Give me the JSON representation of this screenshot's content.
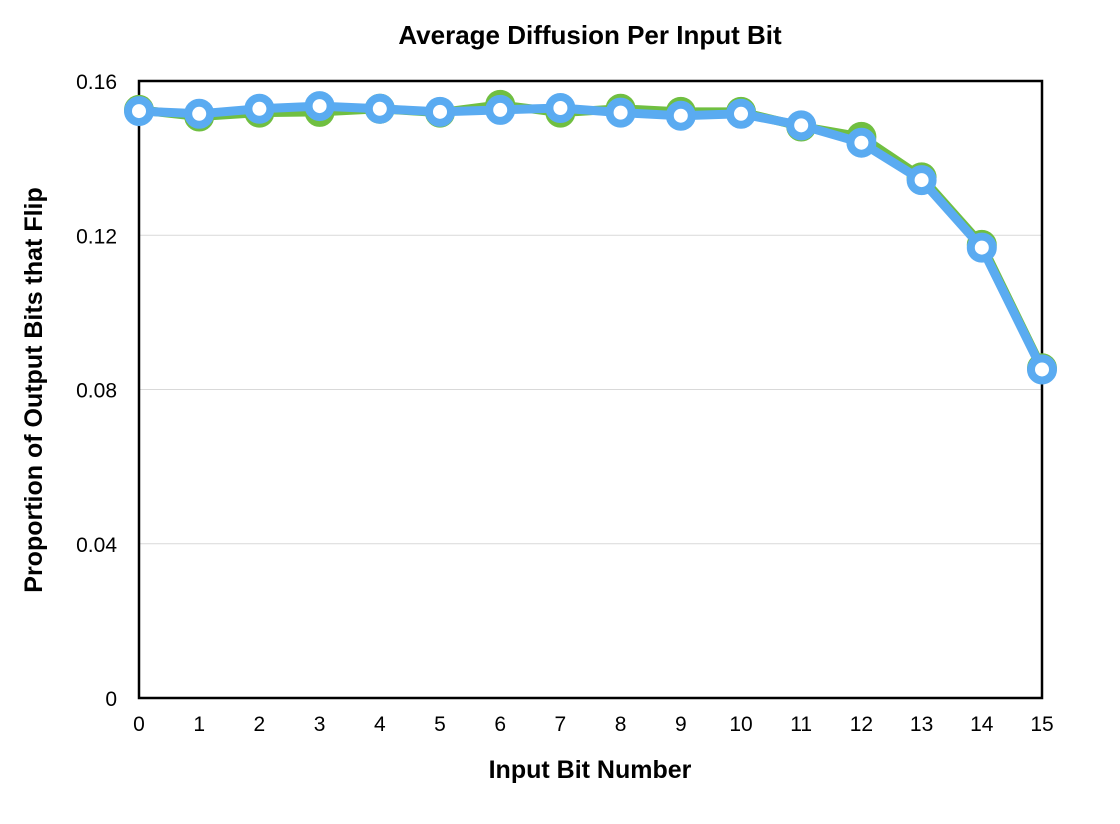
{
  "chart_data": {
    "type": "line",
    "title": "Average Diffusion Per Input Bit",
    "xlabel": "Input Bit Number",
    "ylabel": "Proportion of Output Bits that Flip",
    "x": [
      0,
      1,
      2,
      3,
      4,
      5,
      6,
      7,
      8,
      9,
      10,
      11,
      12,
      13,
      14,
      15
    ],
    "x_tick_labels": [
      "0",
      "1",
      "2",
      "3",
      "4",
      "5",
      "6",
      "7",
      "8",
      "9",
      "10",
      "11",
      "12",
      "13",
      "14",
      "15"
    ],
    "y_tick_values": [
      0,
      0.04,
      0.08,
      0.12,
      0.16
    ],
    "y_tick_labels": [
      "0",
      "0.04",
      "0.08",
      "0.12",
      "0.16"
    ],
    "xlim": [
      0,
      15
    ],
    "ylim": [
      0,
      0.16
    ],
    "grid": "horizontal",
    "legend": "none",
    "series": [
      {
        "color": "#70bf41",
        "values": [
          0.1525,
          0.1508,
          0.1518,
          0.152,
          0.1528,
          0.1518,
          0.1538,
          0.1518,
          0.1528,
          0.152,
          0.152,
          0.1482,
          0.1455,
          0.135,
          0.1175,
          0.0855
        ]
      },
      {
        "color": "#5aabf1",
        "values": [
          0.1522,
          0.1515,
          0.1528,
          0.1535,
          0.1528,
          0.152,
          0.1525,
          0.153,
          0.1518,
          0.151,
          0.1515,
          0.1485,
          0.144,
          0.1343,
          0.1168,
          0.0852
        ]
      }
    ]
  }
}
